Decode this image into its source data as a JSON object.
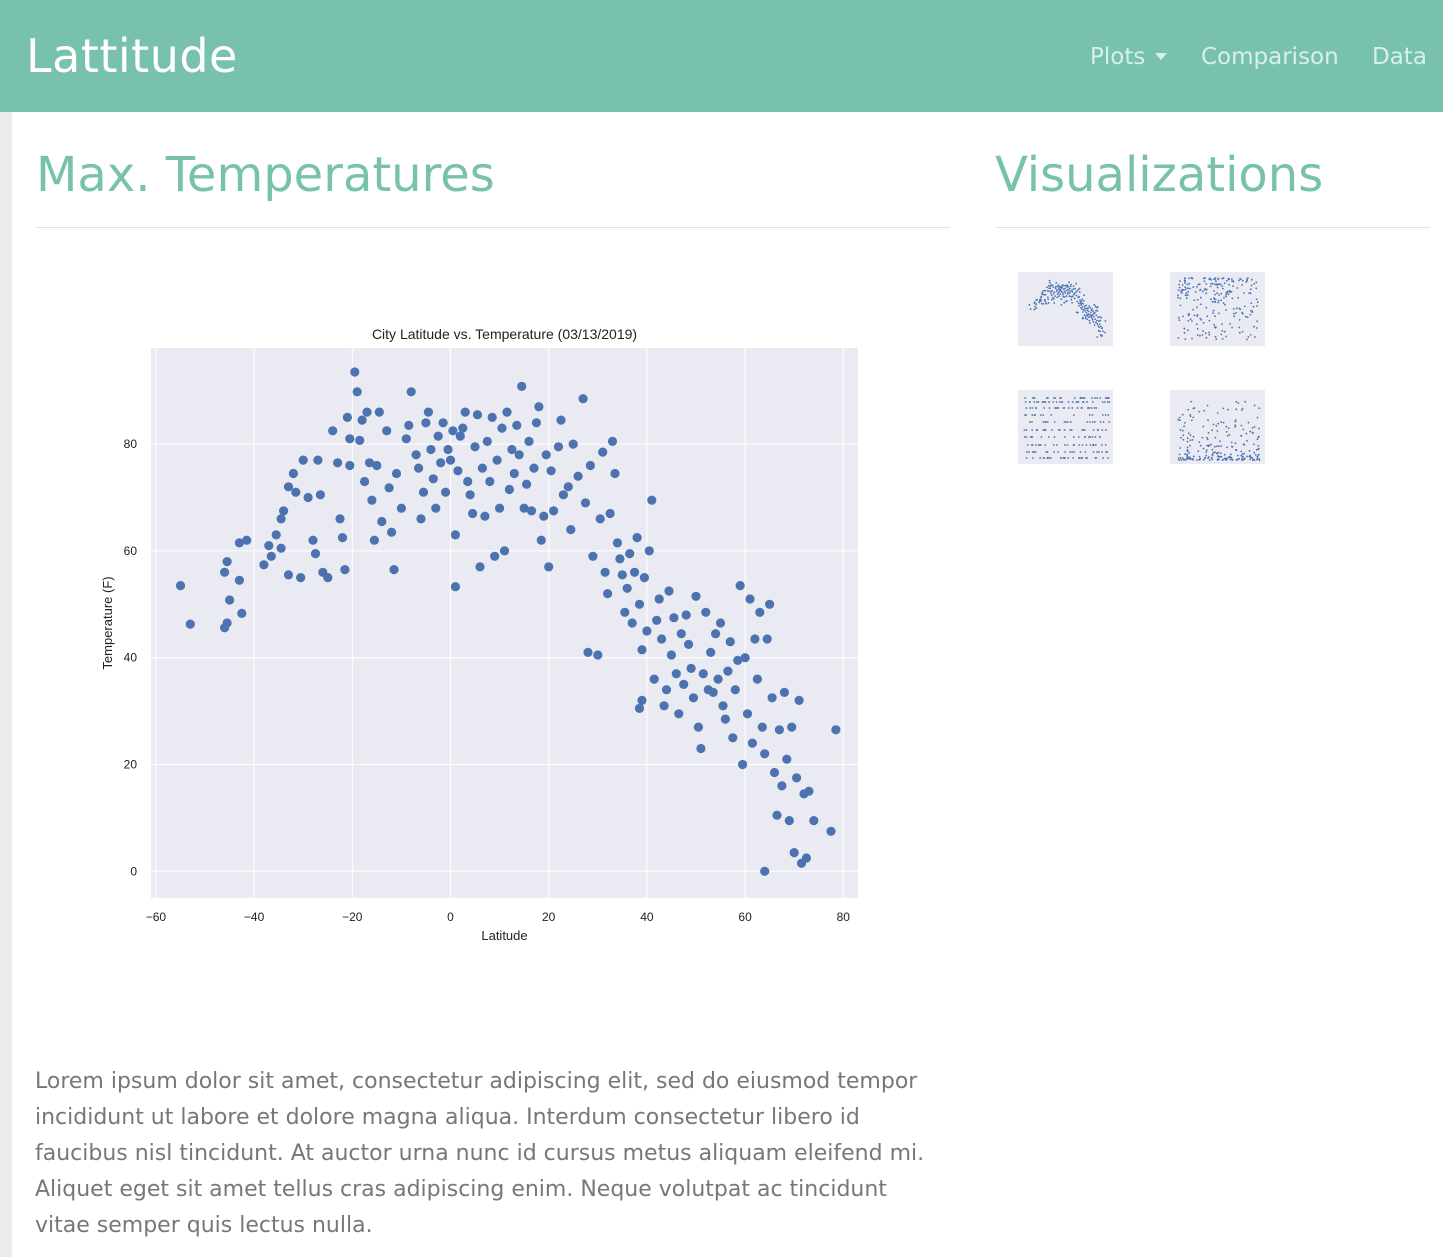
{
  "nav": {
    "brand": "Lattitude",
    "plots_label": "Plots",
    "comparison_label": "Comparison",
    "data_label": "Data"
  },
  "main": {
    "heading": "Max. Temperatures",
    "paragraph": "Lorem ipsum dolor sit amet, consectetur adipiscing elit, sed do eiusmod tempor incididunt ut labore et dolore magna aliqua. Interdum consectetur libero id faucibus nisl tincidunt. At auctor urna nunc id cursus metus aliquam eleifend mi. Aliquet eget sit amet tellus cras adipiscing enim. Neque volutpat ac tincidunt vitae semper quis lectus nulla."
  },
  "sidebar": {
    "heading": "Visualizations",
    "thumbnails": [
      "max-temperature",
      "humidity",
      "cloudiness",
      "wind-speed"
    ]
  },
  "colors": {
    "brand": "#78c2ad",
    "point": "#4c72b0",
    "plot_bg": "#eaeaf2",
    "text_muted": "#777777"
  },
  "chart_data": {
    "type": "scatter",
    "title": "City Latitude vs. Temperature (03/13/2019)",
    "xlabel": "Latitude",
    "ylabel": "Temperature (F)",
    "xlim": [
      -61,
      83
    ],
    "ylim": [
      -5,
      98
    ],
    "xticks": [
      -60,
      -40,
      -20,
      0,
      20,
      40,
      60,
      80
    ],
    "yticks": [
      0,
      20,
      40,
      60,
      80
    ],
    "grid": true,
    "series": [
      {
        "values": [
          [
            -55,
            53.5
          ],
          [
            -53,
            46.3
          ],
          [
            -46,
            45.6
          ],
          [
            -45.5,
            46.5
          ],
          [
            -46,
            56
          ],
          [
            -45.5,
            58
          ],
          [
            -45,
            50.8
          ],
          [
            -43,
            54.5
          ],
          [
            -42.5,
            48.3
          ],
          [
            -43,
            61.5
          ],
          [
            -41.5,
            62
          ],
          [
            -38,
            57.4
          ],
          [
            -37,
            61
          ],
          [
            -36.5,
            59
          ],
          [
            -35.5,
            63
          ],
          [
            -34.5,
            66
          ],
          [
            -34,
            67.5
          ],
          [
            -34.5,
            60.5
          ],
          [
            -33,
            55.5
          ],
          [
            -33,
            72
          ],
          [
            -32,
            74.5
          ],
          [
            -31.5,
            71
          ],
          [
            -30.5,
            55
          ],
          [
            -30,
            77
          ],
          [
            -29,
            70
          ],
          [
            -28,
            62
          ],
          [
            -27.5,
            59.5
          ],
          [
            -27,
            77
          ],
          [
            -26.5,
            70.5
          ],
          [
            -26,
            56
          ],
          [
            -25,
            55
          ],
          [
            -24,
            82.5
          ],
          [
            -23,
            76.5
          ],
          [
            -22.5,
            66
          ],
          [
            -22,
            62.5
          ],
          [
            -21.5,
            56.5
          ],
          [
            -21,
            85
          ],
          [
            -20.5,
            76
          ],
          [
            -20.5,
            81
          ],
          [
            -19.5,
            93.5
          ],
          [
            -19,
            89.8
          ],
          [
            -18.5,
            80.7
          ],
          [
            -18,
            84.5
          ],
          [
            -17.5,
            73
          ],
          [
            -17,
            86
          ],
          [
            -16.5,
            76.5
          ],
          [
            -16,
            69.5
          ],
          [
            -15.5,
            62
          ],
          [
            -15,
            76
          ],
          [
            -14.5,
            86
          ],
          [
            -14,
            65.5
          ],
          [
            -13,
            82.5
          ],
          [
            -12.5,
            71.8
          ],
          [
            -12,
            63.5
          ],
          [
            -11.5,
            56.5
          ],
          [
            -11,
            74.5
          ],
          [
            -10,
            68
          ],
          [
            -9,
            81
          ],
          [
            -8.5,
            83.5
          ],
          [
            -8,
            89.8
          ],
          [
            -7,
            78
          ],
          [
            -6.5,
            75.5
          ],
          [
            -6,
            66
          ],
          [
            -5.5,
            71
          ],
          [
            -5,
            84
          ],
          [
            -4.5,
            86
          ],
          [
            -4,
            79
          ],
          [
            -3.5,
            73.5
          ],
          [
            -3,
            68
          ],
          [
            -2.5,
            81.5
          ],
          [
            -2,
            76.5
          ],
          [
            -1.5,
            84
          ],
          [
            -1,
            71
          ],
          [
            -0.5,
            79
          ],
          [
            0,
            77
          ],
          [
            0.5,
            82.5
          ],
          [
            1,
            63
          ],
          [
            1,
            53.3
          ],
          [
            1.5,
            75
          ],
          [
            2,
            81.5
          ],
          [
            2.5,
            83
          ],
          [
            3,
            86
          ],
          [
            3.5,
            73
          ],
          [
            4,
            70.5
          ],
          [
            4.5,
            67
          ],
          [
            5,
            79.5
          ],
          [
            5.5,
            85.5
          ],
          [
            6,
            57
          ],
          [
            6.5,
            75.5
          ],
          [
            7,
            66.5
          ],
          [
            7.5,
            80.5
          ],
          [
            8,
            73
          ],
          [
            8.5,
            85
          ],
          [
            9,
            59
          ],
          [
            9.5,
            77
          ],
          [
            10,
            68
          ],
          [
            10.5,
            83
          ],
          [
            11,
            60
          ],
          [
            11.5,
            86
          ],
          [
            12,
            71.5
          ],
          [
            12.5,
            79
          ],
          [
            13,
            74.5
          ],
          [
            13.5,
            83.5
          ],
          [
            14,
            78
          ],
          [
            14.5,
            90.8
          ],
          [
            15,
            68
          ],
          [
            15.5,
            72.5
          ],
          [
            16,
            80.5
          ],
          [
            16.5,
            67.5
          ],
          [
            17,
            75.5
          ],
          [
            17.5,
            84
          ],
          [
            18,
            87
          ],
          [
            18.5,
            62
          ],
          [
            19,
            66.5
          ],
          [
            19.5,
            78
          ],
          [
            20,
            57
          ],
          [
            20.5,
            75
          ],
          [
            21,
            67.5
          ],
          [
            22,
            79.5
          ],
          [
            22.5,
            84.5
          ],
          [
            23,
            70.5
          ],
          [
            24,
            72
          ],
          [
            24.5,
            64
          ],
          [
            25,
            80
          ],
          [
            26,
            74
          ],
          [
            27,
            88.5
          ],
          [
            27.5,
            69
          ],
          [
            28,
            41
          ],
          [
            28.5,
            76
          ],
          [
            29,
            59
          ],
          [
            30,
            40.5
          ],
          [
            30.5,
            66
          ],
          [
            31,
            78.5
          ],
          [
            31.5,
            56
          ],
          [
            32,
            52
          ],
          [
            32.5,
            67
          ],
          [
            33,
            80.5
          ],
          [
            33.5,
            74.5
          ],
          [
            34,
            61.5
          ],
          [
            34.5,
            58.5
          ],
          [
            35,
            55.5
          ],
          [
            35.5,
            48.5
          ],
          [
            36,
            53
          ],
          [
            36.5,
            59.5
          ],
          [
            37,
            46.5
          ],
          [
            37.5,
            56
          ],
          [
            38,
            62.5
          ],
          [
            38.5,
            50
          ],
          [
            38.5,
            30.5
          ],
          [
            39,
            41.5
          ],
          [
            39,
            32
          ],
          [
            39.5,
            55
          ],
          [
            40,
            45
          ],
          [
            40.5,
            60
          ],
          [
            41,
            69.5
          ],
          [
            41.5,
            36
          ],
          [
            42,
            47
          ],
          [
            42.5,
            51
          ],
          [
            43,
            43.5
          ],
          [
            43.5,
            31
          ],
          [
            44,
            34
          ],
          [
            44.5,
            52.5
          ],
          [
            45,
            40.5
          ],
          [
            45.5,
            47.5
          ],
          [
            46,
            37
          ],
          [
            46.5,
            29.5
          ],
          [
            47,
            44.5
          ],
          [
            47.5,
            35
          ],
          [
            48,
            48
          ],
          [
            48.5,
            42.5
          ],
          [
            49,
            38
          ],
          [
            49.5,
            32.5
          ],
          [
            50,
            51.5
          ],
          [
            50.5,
            27
          ],
          [
            51,
            23
          ],
          [
            51.5,
            37
          ],
          [
            52,
            48.5
          ],
          [
            52.5,
            34
          ],
          [
            53,
            41
          ],
          [
            53.5,
            33.5
          ],
          [
            54,
            44.5
          ],
          [
            54.5,
            36
          ],
          [
            55,
            46.5
          ],
          [
            55.5,
            31
          ],
          [
            56,
            28.5
          ],
          [
            56.5,
            37.5
          ],
          [
            57,
            43
          ],
          [
            57.5,
            25
          ],
          [
            58,
            34
          ],
          [
            58.5,
            39.5
          ],
          [
            59,
            53.5
          ],
          [
            59.5,
            20
          ],
          [
            60,
            40
          ],
          [
            60.5,
            29.5
          ],
          [
            61,
            51
          ],
          [
            61.5,
            24
          ],
          [
            62,
            43.5
          ],
          [
            62.5,
            36
          ],
          [
            63,
            48.5
          ],
          [
            63.5,
            27
          ],
          [
            64,
            0
          ],
          [
            64,
            22
          ],
          [
            64.5,
            43.5
          ],
          [
            65,
            50
          ],
          [
            65.5,
            32.5
          ],
          [
            66,
            18.5
          ],
          [
            66.5,
            10.5
          ],
          [
            67,
            26.5
          ],
          [
            67.5,
            16
          ],
          [
            68,
            33.5
          ],
          [
            68.5,
            21
          ],
          [
            69,
            9.5
          ],
          [
            69.5,
            27
          ],
          [
            70,
            3.5
          ],
          [
            70.5,
            17.5
          ],
          [
            71,
            32
          ],
          [
            71.5,
            1.5
          ],
          [
            72,
            14.5
          ],
          [
            72.5,
            2.5
          ],
          [
            73,
            15
          ],
          [
            74,
            9.5
          ],
          [
            77.5,
            7.5
          ],
          [
            78.5,
            26.5
          ]
        ]
      }
    ]
  }
}
